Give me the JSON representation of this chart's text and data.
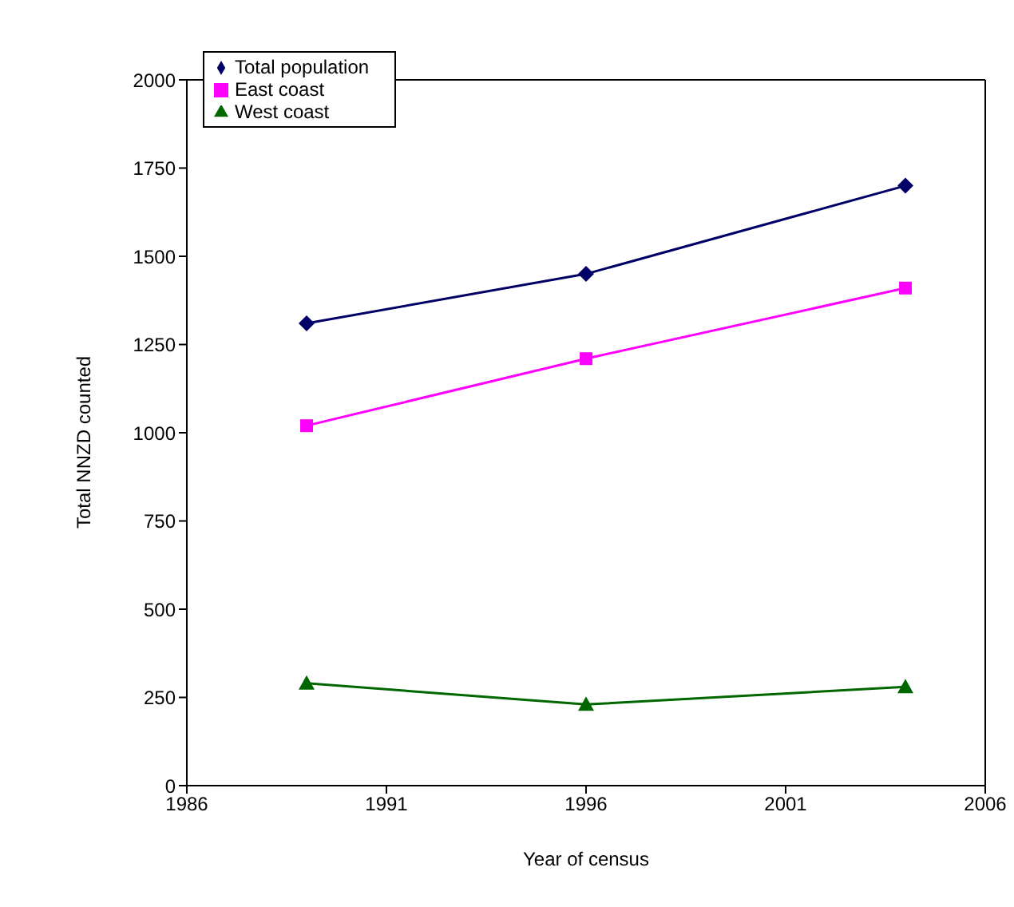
{
  "chart_data": {
    "type": "line",
    "xlabel": "Year of census",
    "ylabel": "Total NNZD counted",
    "x": [
      1989,
      1996,
      2004
    ],
    "series": [
      {
        "name": "Total population",
        "color": "#000066",
        "marker": "diamond",
        "values": [
          1310,
          1450,
          1700
        ]
      },
      {
        "name": "East coast",
        "color": "#ff00ff",
        "marker": "square",
        "values": [
          1020,
          1210,
          1410
        ]
      },
      {
        "name": "West coast",
        "color": "#006600",
        "marker": "triangle",
        "values": [
          290,
          230,
          280
        ]
      }
    ],
    "xlim": [
      1986,
      2006
    ],
    "xticks": [
      1986,
      1991,
      1996,
      2001,
      2006
    ],
    "ylim": [
      0,
      2000
    ],
    "yticks": [
      0,
      250,
      500,
      750,
      1000,
      1250,
      1500,
      1750,
      2000
    ],
    "grid": false,
    "legend": "top left"
  }
}
